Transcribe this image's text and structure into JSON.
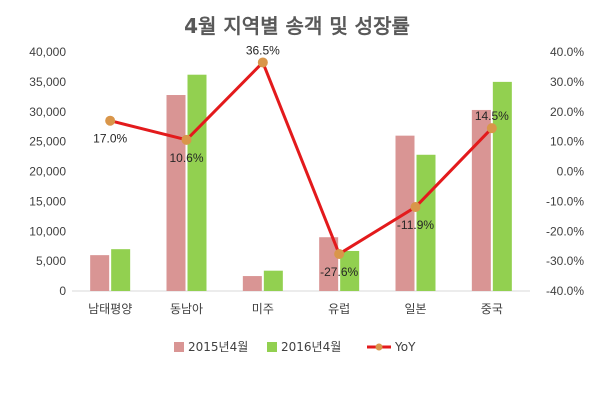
{
  "chart_data": {
    "type": "bar",
    "title": "4월 지역별 송객 및 성장률",
    "categories": [
      "남태평양",
      "동남아",
      "미주",
      "유럽",
      "일본",
      "중국"
    ],
    "series": [
      {
        "name": "2015년4월",
        "type": "bar",
        "axis": "left",
        "color": "#D99594",
        "values": [
          6000,
          32800,
          2500,
          9000,
          26000,
          30300
        ]
      },
      {
        "name": "2016년4월",
        "type": "bar",
        "axis": "left",
        "color": "#92D050",
        "values": [
          7000,
          36200,
          3400,
          6700,
          22800,
          35000
        ]
      },
      {
        "name": "YoY",
        "type": "line",
        "axis": "right",
        "color": "#E31A1C",
        "marker_color": "#D9964A",
        "values": [
          17.0,
          10.6,
          36.5,
          -27.6,
          -11.9,
          14.5
        ],
        "labels": [
          "17.0%",
          "10.6%",
          "36.5%",
          "-27.6%",
          "-11.9%",
          "14.5%"
        ]
      }
    ],
    "y_left": {
      "min": 0,
      "max": 40000,
      "step": 5000,
      "tick_labels": [
        "0",
        "5,000",
        "10,000",
        "15,000",
        "20,000",
        "25,000",
        "30,000",
        "35,000",
        "40,000"
      ]
    },
    "y_right": {
      "min": -40,
      "max": 40,
      "step": 10,
      "tick_labels": [
        "-40.0%",
        "-30.0%",
        "-20.0%",
        "-10.0%",
        "0.0%",
        "10.0%",
        "20.0%",
        "30.0%",
        "40.0%"
      ]
    },
    "grid": false,
    "legend": {
      "position": "bottom",
      "items": [
        "2015년4월",
        "2016년4월",
        "YoY"
      ]
    }
  }
}
